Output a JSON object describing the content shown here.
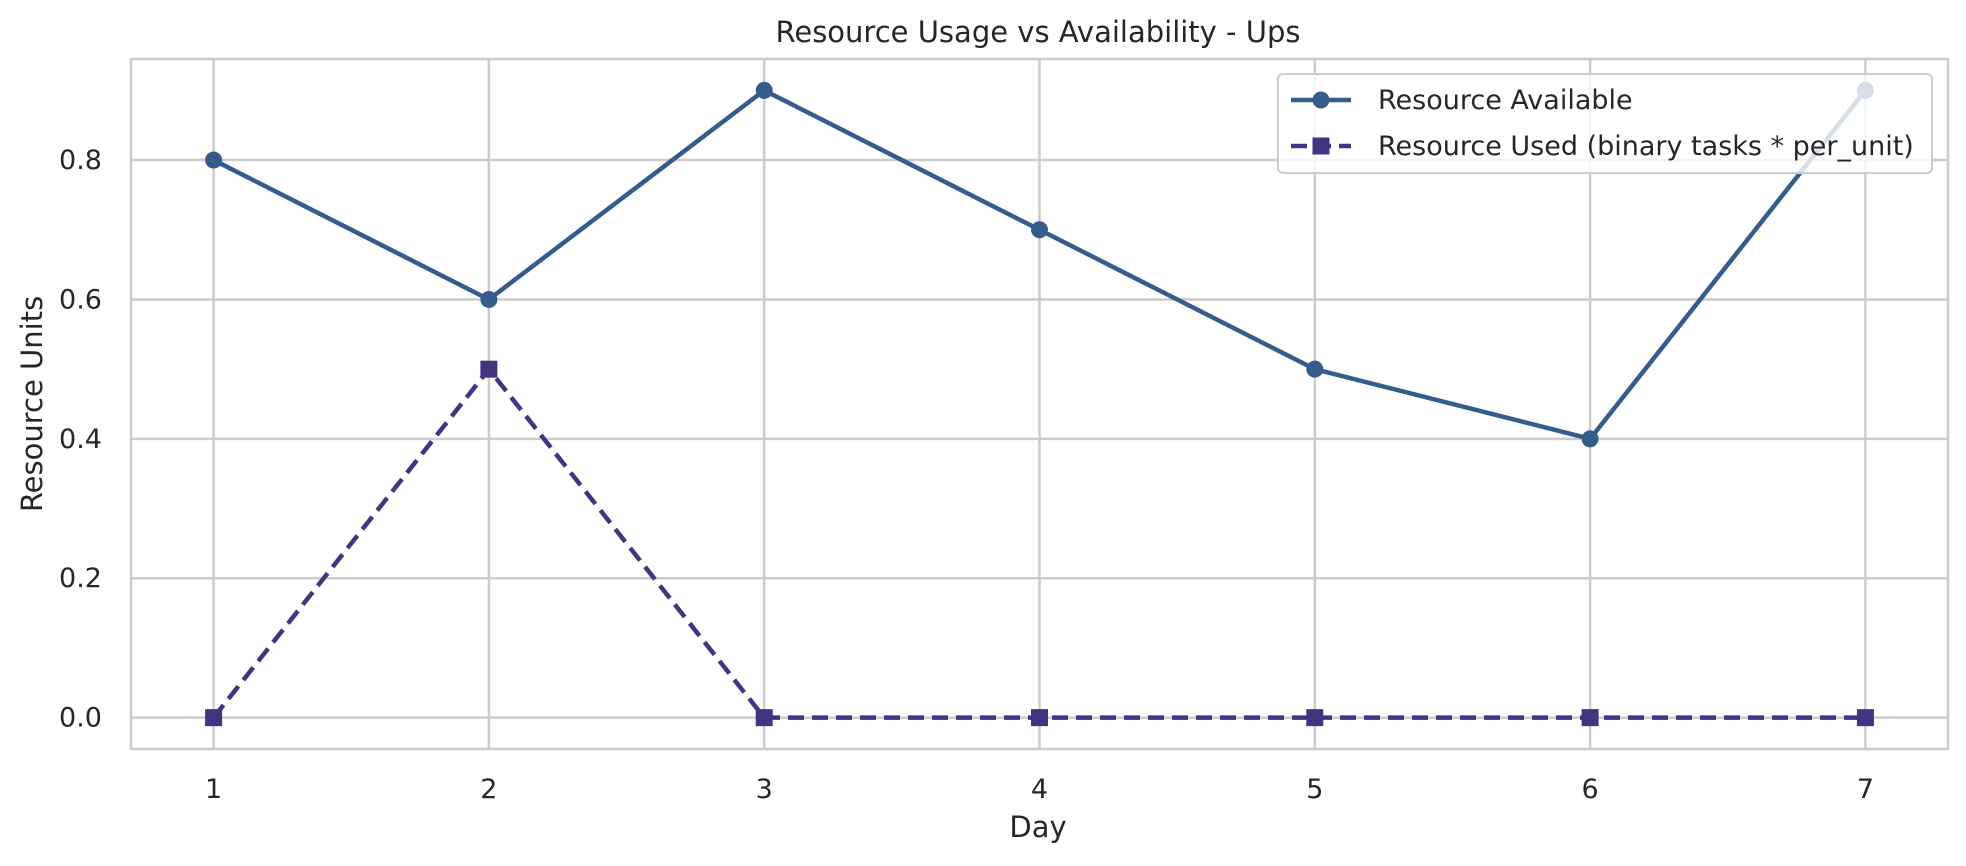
{
  "chart_data": {
    "type": "line",
    "title": "Resource Usage vs Availability - Ups",
    "xlabel": "Day",
    "ylabel": "Resource Units",
    "x": [
      1,
      2,
      3,
      4,
      5,
      6,
      7
    ],
    "x_ticks": [
      "1",
      "2",
      "3",
      "4",
      "5",
      "6",
      "7"
    ],
    "y_ticks": [
      "0.0",
      "0.2",
      "0.4",
      "0.6",
      "0.8"
    ],
    "xlim": [
      0.7,
      7.3
    ],
    "ylim": [
      -0.045,
      0.945
    ],
    "grid": true,
    "legend_position": "top-right",
    "series": [
      {
        "name": "Resource Available",
        "values": [
          0.8,
          0.6,
          0.9,
          0.7,
          0.5,
          0.4,
          0.9
        ],
        "color": "#345d8c",
        "marker": "circle",
        "line_style": "solid"
      },
      {
        "name": "Resource Used (binary tasks * per_unit)",
        "values": [
          0.0,
          0.5,
          0.0,
          0.0,
          0.0,
          0.0,
          0.0
        ],
        "color": "#44337f",
        "marker": "square",
        "line_style": "dashed"
      }
    ]
  }
}
